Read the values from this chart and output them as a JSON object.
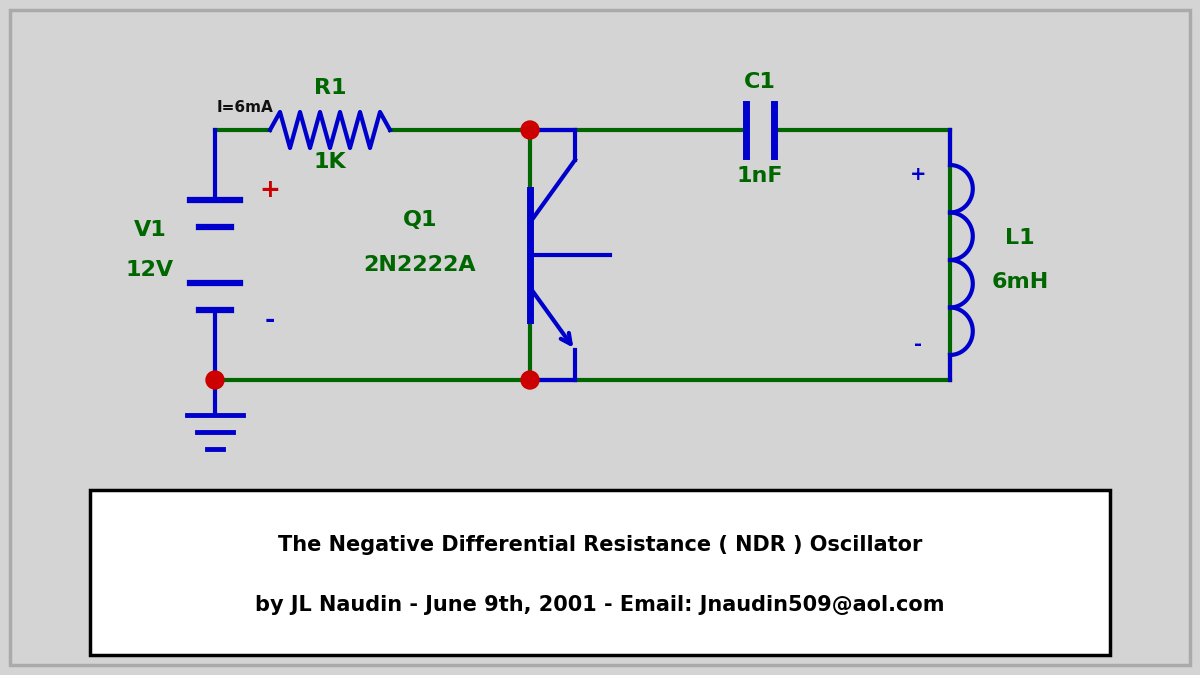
{
  "bg_color": "#d4d4d4",
  "wire_green": "#006600",
  "wire_blue": "#0000cc",
  "label_green": "#006600",
  "label_black": "#111111",
  "label_red": "#cc0000",
  "junction_red": "#cc0000",
  "title_line1": "The Negative Differential Resistance ( NDR ) Oscillator",
  "title_line2": "by JL Naudin - June 9th, 2001 - Email: Jnaudin509@aol.com",
  "v1_label": "V1",
  "v1_value": "12V",
  "r1_label": "R1",
  "r1_value": "1K",
  "c1_label": "C1",
  "c1_value": "1nF",
  "l1_label": "L1",
  "l1_value": "6mH",
  "q1_label": "Q1",
  "q1_model": "2N2222A",
  "current_label": "I=6mA"
}
